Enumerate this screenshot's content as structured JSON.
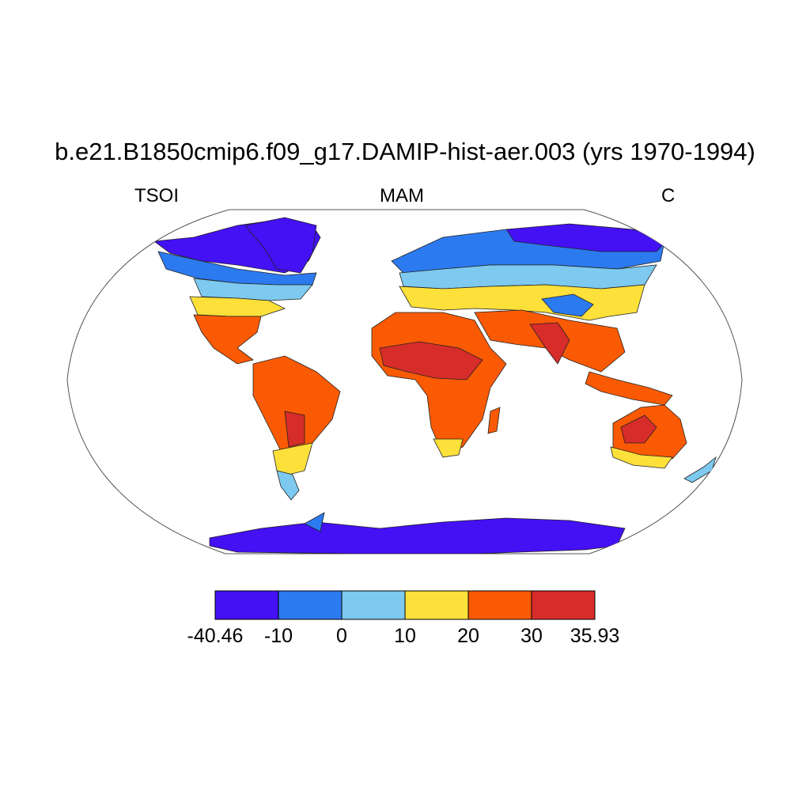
{
  "title": "b.e21.B1850cmip6.f09_g17.DAMIP-hist-aer.003 (yrs 1970-1994)",
  "subtitle_left": "TSOI",
  "subtitle_center": "MAM",
  "subtitle_right": "C",
  "colorbar": {
    "labels": [
      "-40.46",
      "-10",
      "0",
      "10",
      "20",
      "30",
      "35.93"
    ],
    "bins": [
      {
        "range": [
          -40.46,
          -10
        ],
        "color": "#4410f4"
      },
      {
        "range": [
          -10,
          0
        ],
        "color": "#2c7af0"
      },
      {
        "range": [
          0,
          10
        ],
        "color": "#7dc9ef"
      },
      {
        "range": [
          10,
          20
        ],
        "color": "#fde03a"
      },
      {
        "range": [
          20,
          30
        ],
        "color": "#fb5a04"
      },
      {
        "range": [
          30,
          35.93
        ],
        "color": "#d62c2a"
      }
    ]
  },
  "map": {
    "projection": "Robinson",
    "variable": "soil temperature",
    "season": "MAM",
    "ocean_color": "#ffffff",
    "coastline_color": "#000000"
  }
}
